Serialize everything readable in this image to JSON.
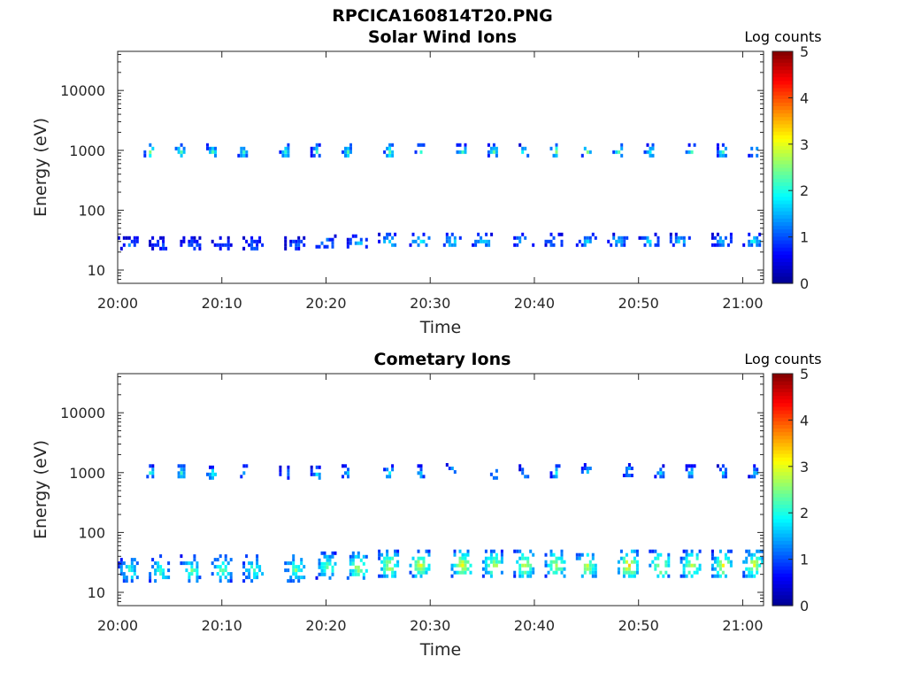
{
  "figure": {
    "title": "RPCICA160814T20.PNG"
  },
  "colormap": {
    "name": "jet",
    "stops": [
      "#00008f",
      "#0000ff",
      "#0080ff",
      "#00ffff",
      "#80ff80",
      "#ffff00",
      "#ff8000",
      "#ff0000",
      "#800000"
    ]
  },
  "chart_data": [
    {
      "type": "heatmap",
      "title": "Solar Wind Ions",
      "xlabel": "Time",
      "ylabel": "Energy (eV)",
      "yscale": "log",
      "xlim": [
        "20:00",
        "21:02"
      ],
      "ylim": [
        6,
        45000
      ],
      "xticks": [
        "20:00",
        "20:10",
        "20:20",
        "20:30",
        "20:40",
        "20:50",
        "21:00"
      ],
      "yticks": [
        10,
        100,
        1000,
        10000
      ],
      "ytick_labels": [
        "10",
        "100",
        "1000",
        "10000"
      ],
      "colorbar": {
        "title": "Log counts",
        "range": [
          0,
          5
        ],
        "ticks": [
          "0",
          "1",
          "2",
          "3",
          "4",
          "5"
        ]
      },
      "clusters": [
        {
          "time": "20:03",
          "energy": 1000,
          "log_counts": 2.4
        },
        {
          "time": "20:06",
          "energy": 1000,
          "log_counts": 2.3
        },
        {
          "time": "20:09",
          "energy": 1000,
          "log_counts": 2.2
        },
        {
          "time": "20:12",
          "energy": 1000,
          "log_counts": 2.1
        },
        {
          "time": "20:16",
          "energy": 1000,
          "log_counts": 2.2
        },
        {
          "time": "20:19",
          "energy": 1000,
          "log_counts": 2.0
        },
        {
          "time": "20:22",
          "energy": 1000,
          "log_counts": 2.1
        },
        {
          "time": "20:26",
          "energy": 1000,
          "log_counts": 2.3
        },
        {
          "time": "20:29",
          "energy": 1000,
          "log_counts": 2.2
        },
        {
          "time": "20:33",
          "energy": 1000,
          "log_counts": 2.4
        },
        {
          "time": "20:36",
          "energy": 1000,
          "log_counts": 2.3
        },
        {
          "time": "20:39",
          "energy": 1000,
          "log_counts": 2.2
        },
        {
          "time": "20:42",
          "energy": 1000,
          "log_counts": 2.5
        },
        {
          "time": "20:45",
          "energy": 1000,
          "log_counts": 2.3
        },
        {
          "time": "20:48",
          "energy": 1000,
          "log_counts": 2.1
        },
        {
          "time": "20:51",
          "energy": 1000,
          "log_counts": 2.0
        },
        {
          "time": "20:55",
          "energy": 1000,
          "log_counts": 2.2
        },
        {
          "time": "20:58",
          "energy": 1000,
          "log_counts": 2.1
        },
        {
          "time": "21:01",
          "energy": 1000,
          "log_counts": 2.0
        },
        {
          "time": "20:01",
          "energy": 28,
          "log_counts": 1.2
        },
        {
          "time": "20:04",
          "energy": 28,
          "log_counts": 1.0
        },
        {
          "time": "20:07",
          "energy": 28,
          "log_counts": 1.1
        },
        {
          "time": "20:10",
          "energy": 28,
          "log_counts": 1.0
        },
        {
          "time": "20:13",
          "energy": 28,
          "log_counts": 1.1
        },
        {
          "time": "20:17",
          "energy": 28,
          "log_counts": 1.2
        },
        {
          "time": "20:20",
          "energy": 30,
          "log_counts": 1.4
        },
        {
          "time": "20:23",
          "energy": 30,
          "log_counts": 1.6
        },
        {
          "time": "20:26",
          "energy": 32,
          "log_counts": 1.8
        },
        {
          "time": "20:29",
          "energy": 32,
          "log_counts": 1.9
        },
        {
          "time": "20:32",
          "energy": 32,
          "log_counts": 1.9
        },
        {
          "time": "20:35",
          "energy": 32,
          "log_counts": 1.8
        },
        {
          "time": "20:39",
          "energy": 32,
          "log_counts": 1.7
        },
        {
          "time": "20:42",
          "energy": 32,
          "log_counts": 1.6
        },
        {
          "time": "20:45",
          "energy": 32,
          "log_counts": 1.7
        },
        {
          "time": "20:48",
          "energy": 32,
          "log_counts": 1.7
        },
        {
          "time": "20:51",
          "energy": 32,
          "log_counts": 1.8
        },
        {
          "time": "20:54",
          "energy": 32,
          "log_counts": 1.8
        },
        {
          "time": "20:58",
          "energy": 32,
          "log_counts": 1.7
        },
        {
          "time": "21:01",
          "energy": 32,
          "log_counts": 1.8
        }
      ]
    },
    {
      "type": "heatmap",
      "title": "Cometary Ions",
      "xlabel": "Time",
      "ylabel": "Energy (eV)",
      "yscale": "log",
      "xlim": [
        "20:00",
        "21:02"
      ],
      "ylim": [
        6,
        45000
      ],
      "xticks": [
        "20:00",
        "20:10",
        "20:20",
        "20:30",
        "20:40",
        "20:50",
        "21:00"
      ],
      "yticks": [
        10,
        100,
        1000,
        10000
      ],
      "ytick_labels": [
        "10",
        "100",
        "1000",
        "10000"
      ],
      "colorbar": {
        "title": "Log counts",
        "range": [
          0,
          5
        ],
        "ticks": [
          "0",
          "1",
          "2",
          "3",
          "4",
          "5"
        ]
      },
      "clusters": [
        {
          "time": "20:01",
          "energy": 25,
          "log_counts": 2.2
        },
        {
          "time": "20:04",
          "energy": 25,
          "log_counts": 2.3
        },
        {
          "time": "20:07",
          "energy": 25,
          "log_counts": 2.3
        },
        {
          "time": "20:10",
          "energy": 25,
          "log_counts": 2.4
        },
        {
          "time": "20:13",
          "energy": 25,
          "log_counts": 2.3
        },
        {
          "time": "20:17",
          "energy": 25,
          "log_counts": 2.4
        },
        {
          "time": "20:20",
          "energy": 28,
          "log_counts": 2.5
        },
        {
          "time": "20:23",
          "energy": 28,
          "log_counts": 2.8
        },
        {
          "time": "20:26",
          "energy": 30,
          "log_counts": 2.9
        },
        {
          "time": "20:29",
          "energy": 30,
          "log_counts": 3.0
        },
        {
          "time": "20:33",
          "energy": 30,
          "log_counts": 3.1
        },
        {
          "time": "20:36",
          "energy": 30,
          "log_counts": 2.9
        },
        {
          "time": "20:39",
          "energy": 30,
          "log_counts": 3.0
        },
        {
          "time": "20:42",
          "energy": 30,
          "log_counts": 2.9
        },
        {
          "time": "20:45",
          "energy": 30,
          "log_counts": 2.8
        },
        {
          "time": "20:49",
          "energy": 30,
          "log_counts": 3.3
        },
        {
          "time": "20:52",
          "energy": 30,
          "log_counts": 3.1
        },
        {
          "time": "20:55",
          "energy": 30,
          "log_counts": 3.0
        },
        {
          "time": "20:58",
          "energy": 30,
          "log_counts": 3.1
        },
        {
          "time": "21:01",
          "energy": 30,
          "log_counts": 3.0
        },
        {
          "time": "20:03",
          "energy": 1050,
          "log_counts": 2.0
        },
        {
          "time": "20:06",
          "energy": 1050,
          "log_counts": 2.0
        },
        {
          "time": "20:09",
          "energy": 1000,
          "log_counts": 2.1
        },
        {
          "time": "20:12",
          "energy": 1050,
          "log_counts": 1.6
        },
        {
          "time": "20:16",
          "energy": 1000,
          "log_counts": 1.6
        },
        {
          "time": "20:19",
          "energy": 1000,
          "log_counts": 1.8
        },
        {
          "time": "20:22",
          "energy": 1050,
          "log_counts": 1.7
        },
        {
          "time": "20:26",
          "energy": 1050,
          "log_counts": 1.9
        },
        {
          "time": "20:29",
          "energy": 1050,
          "log_counts": 1.7
        },
        {
          "time": "20:32",
          "energy": 1100,
          "log_counts": 1.8
        },
        {
          "time": "20:36",
          "energy": 1000,
          "log_counts": 1.6
        },
        {
          "time": "20:39",
          "energy": 1050,
          "log_counts": 1.6
        },
        {
          "time": "20:42",
          "energy": 1050,
          "log_counts": 1.9
        },
        {
          "time": "20:45",
          "energy": 1100,
          "log_counts": 1.8
        },
        {
          "time": "20:49",
          "energy": 1100,
          "log_counts": 1.7
        },
        {
          "time": "20:52",
          "energy": 1050,
          "log_counts": 1.7
        },
        {
          "time": "20:55",
          "energy": 1050,
          "log_counts": 1.8
        },
        {
          "time": "20:58",
          "energy": 1050,
          "log_counts": 1.6
        },
        {
          "time": "21:01",
          "energy": 1050,
          "log_counts": 1.7
        }
      ]
    }
  ]
}
